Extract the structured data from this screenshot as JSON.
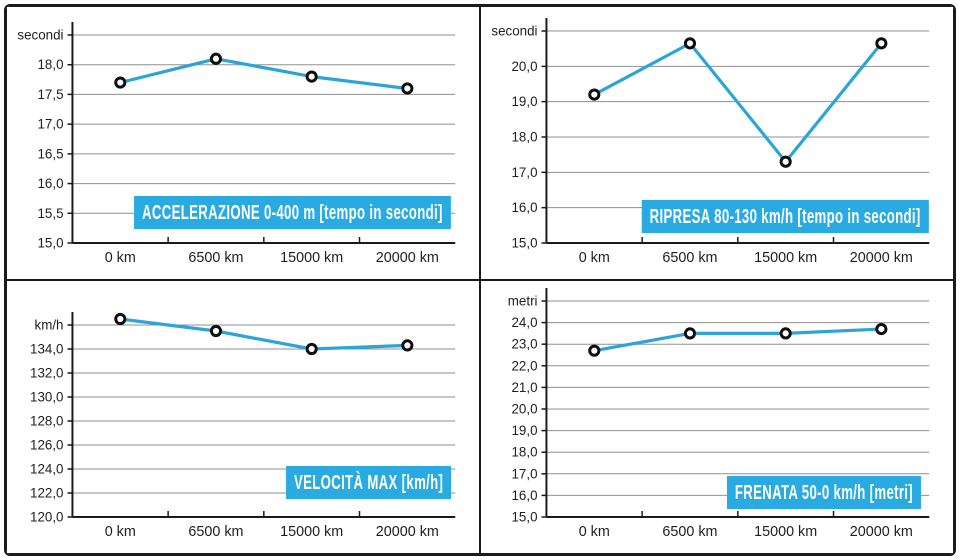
{
  "page": {
    "background": "#ffffff",
    "border_color": "#1a1a1a",
    "grid_color": "#909090",
    "text_color": "#1f1f1f"
  },
  "chart_data": [
    {
      "type": "line",
      "title": "ACCELERAZIONE 0-400 m [tempo in secondi]",
      "ylabel": "secondi",
      "categories": [
        "0 km",
        "6500 km",
        "15000 km",
        "20000 km"
      ],
      "values": [
        17.7,
        18.1,
        17.8,
        17.6
      ],
      "ylim": [
        15.0,
        18.5
      ],
      "ytick_step": 0.5,
      "ytick_labels": [
        "18,0",
        "17,5",
        "17,0",
        "16,5",
        "16,0",
        "15,5",
        "15,0"
      ],
      "grid": true,
      "legend": "none",
      "line_color": "#2BA4D8",
      "banner_color": "#29ABE2",
      "plot_top": 28
    },
    {
      "type": "line",
      "title": "RIPRESA 80-130 km/h [tempo in secondi]",
      "ylabel": "secondi",
      "categories": [
        "0 km",
        "6500 km",
        "15000 km",
        "20000 km"
      ],
      "values": [
        19.2,
        20.65,
        17.3,
        20.65
      ],
      "ylim": [
        15.0,
        21.0
      ],
      "ytick_step": 1.0,
      "ytick_labels": [
        "20,0",
        "19,0",
        "18,0",
        "17,0",
        "16,0",
        "15,0"
      ],
      "grid": true,
      "legend": "none",
      "line_color": "#2BA4D8",
      "banner_color": "#29ABE2",
      "plot_top": 24
    },
    {
      "type": "line",
      "title": "VELOCITÀ MAX [km/h]",
      "ylabel": "km/h",
      "categories": [
        "0 km",
        "6500 km",
        "15000 km",
        "20000 km"
      ],
      "values": [
        136.5,
        135.5,
        134.0,
        134.3
      ],
      "ylim": [
        120.0,
        136.0
      ],
      "ytick_step": 2.0,
      "ytick_labels": [
        "134,0",
        "132,0",
        "130,0",
        "128,0",
        "126,0",
        "124,0",
        "122,0",
        "120,0"
      ],
      "grid": true,
      "legend": "none",
      "line_color": "#2BA4D8",
      "banner_color": "#29ABE2",
      "plot_top": 44
    },
    {
      "type": "line",
      "title": "FRENATA 50-0 km/h [metri]",
      "ylabel": "metri",
      "categories": [
        "0 km",
        "6500 km",
        "15000 km",
        "20000 km"
      ],
      "values": [
        22.7,
        23.5,
        23.5,
        23.7
      ],
      "ylim": [
        15.0,
        25.0
      ],
      "ytick_step": 1.0,
      "ytick_labels": [
        "24,0",
        "23,0",
        "22,0",
        "21,0",
        "20,0",
        "19,0",
        "18,0",
        "17,0",
        "16,0",
        "15,0"
      ],
      "grid": true,
      "legend": "none",
      "line_color": "#2BA4D8",
      "banner_color": "#29ABE2",
      "plot_top": 20
    }
  ]
}
